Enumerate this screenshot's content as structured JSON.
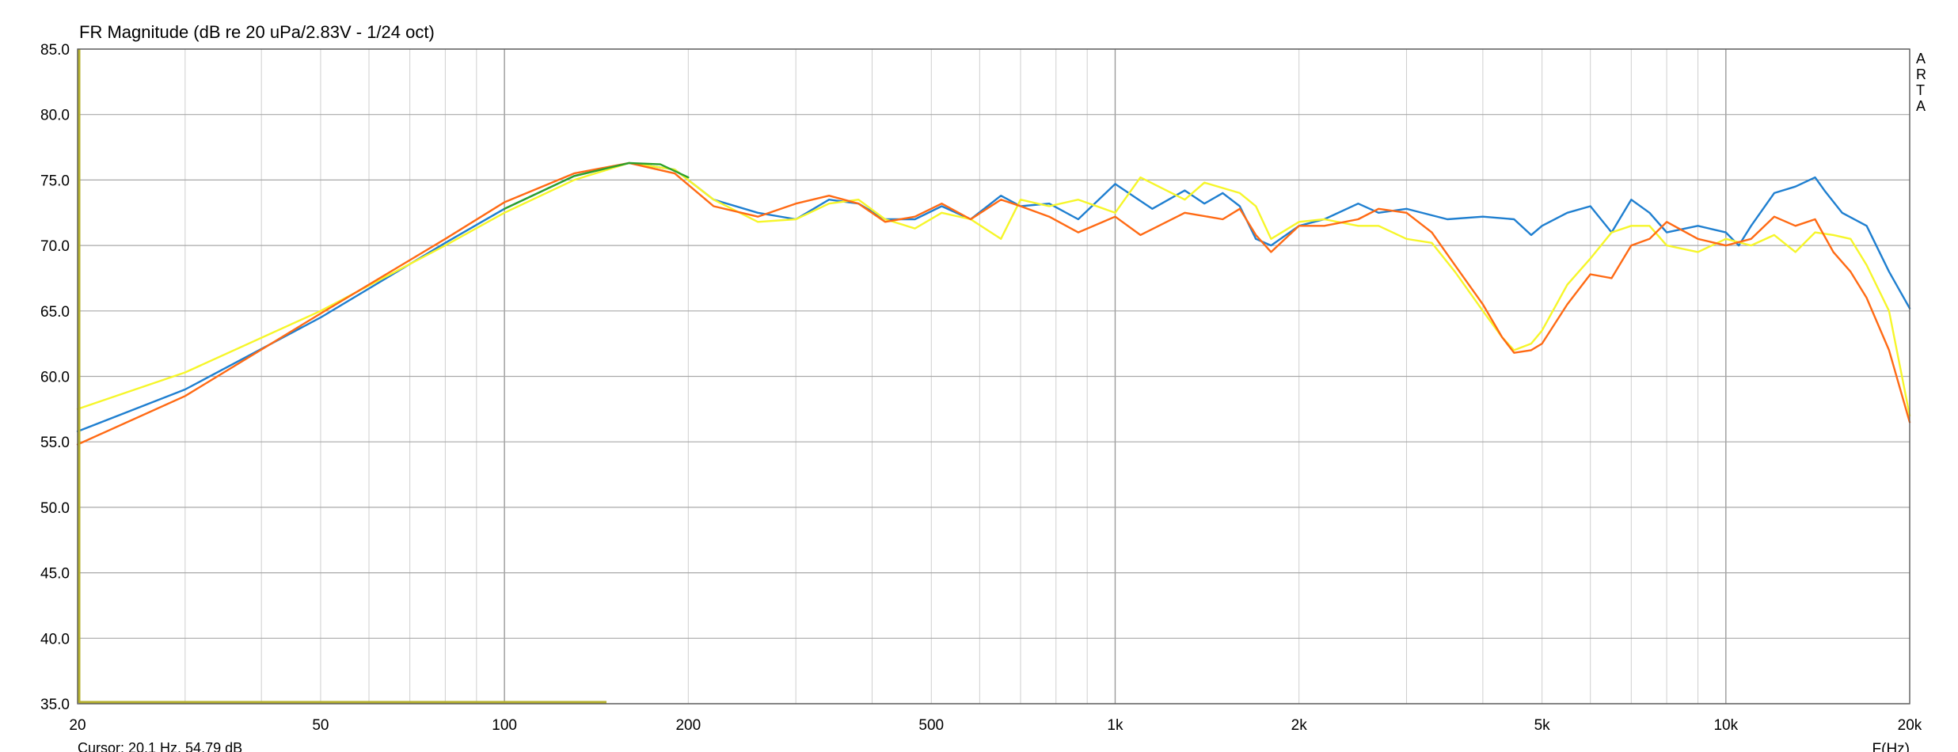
{
  "chart_data": {
    "type": "line",
    "title": "FR Magnitude (dB re 20 uPa/2.83V - 1/24 oct)",
    "xlabel": "F(Hz)",
    "ylabel": "",
    "xscale": "log",
    "xlim": [
      20,
      20000
    ],
    "ylim": [
      35,
      85
    ],
    "grid": true,
    "yticks": [
      "85.0",
      "80.0",
      "75.0",
      "70.0",
      "65.0",
      "60.0",
      "55.0",
      "50.0",
      "45.0",
      "40.0",
      "35.0"
    ],
    "xticks": [
      {
        "value": 20,
        "label": "20"
      },
      {
        "value": 50,
        "label": "50"
      },
      {
        "value": 100,
        "label": "100"
      },
      {
        "value": 200,
        "label": "200"
      },
      {
        "value": 500,
        "label": "500"
      },
      {
        "value": 1000,
        "label": "1k"
      },
      {
        "value": 2000,
        "label": "2k"
      },
      {
        "value": 5000,
        "label": "5k"
      },
      {
        "value": 10000,
        "label": "10k"
      },
      {
        "value": 20000,
        "label": "20k"
      }
    ],
    "brand": "ARTA",
    "cursor": "Cursor: 20.1 Hz, 54.79 dB",
    "series": [
      {
        "color": "#1f7fd0",
        "x": [
          20,
          30,
          50,
          80,
          100,
          130,
          160,
          190,
          220,
          260,
          300,
          340,
          380,
          420,
          470,
          520,
          580,
          650,
          700,
          780,
          870,
          1000,
          1150,
          1300,
          1400,
          1500,
          1600,
          1700,
          1800,
          2000,
          2200,
          2500,
          2700,
          3000,
          3500,
          4000,
          4500,
          4800,
          5000,
          5500,
          6000,
          6500,
          7000,
          7500,
          8000,
          9000,
          10000,
          10500,
          11000,
          12000,
          13000,
          14000,
          14500,
          15500,
          17000,
          18500,
          20000
        ],
        "y": [
          55.8,
          59.0,
          64.5,
          70.2,
          72.8,
          75.3,
          76.3,
          75.8,
          73.5,
          72.5,
          72.0,
          73.5,
          73.2,
          72.0,
          72.0,
          73.0,
          72.0,
          73.8,
          73.0,
          73.2,
          72.0,
          74.7,
          72.8,
          74.2,
          73.2,
          74.0,
          73.0,
          70.5,
          70.0,
          71.5,
          72.0,
          73.2,
          72.5,
          72.8,
          72.0,
          72.2,
          72.0,
          70.8,
          71.5,
          72.5,
          73.0,
          71.0,
          73.5,
          72.5,
          71.0,
          71.5,
          71.0,
          70.0,
          71.5,
          74.0,
          74.5,
          75.2,
          74.2,
          72.5,
          71.5,
          68.0,
          65.2
        ]
      },
      {
        "color": "#f6f62a",
        "x": [
          20,
          30,
          50,
          80,
          100,
          130,
          160,
          190,
          220,
          260,
          300,
          340,
          380,
          420,
          470,
          520,
          580,
          650,
          700,
          780,
          870,
          1000,
          1100,
          1300,
          1400,
          1600,
          1700,
          1800,
          2000,
          2200,
          2500,
          2700,
          3000,
          3300,
          3600,
          4000,
          4300,
          4500,
          4800,
          5000,
          5500,
          6000,
          6500,
          7000,
          7500,
          8000,
          9000,
          10000,
          11000,
          12000,
          13000,
          14000,
          15000,
          16000,
          17000,
          18500,
          20000
        ],
        "y": [
          57.5,
          60.3,
          65.0,
          70.0,
          72.5,
          75.0,
          76.3,
          75.8,
          73.5,
          71.8,
          72.0,
          73.2,
          73.5,
          72.0,
          71.3,
          72.5,
          72.0,
          70.5,
          73.5,
          73.0,
          73.5,
          72.5,
          75.2,
          73.5,
          74.8,
          74.0,
          73.0,
          70.5,
          71.8,
          72.0,
          71.5,
          71.5,
          70.5,
          70.2,
          68.0,
          65.0,
          63.0,
          62.0,
          62.5,
          63.5,
          67.0,
          69.0,
          71.0,
          71.5,
          71.5,
          70.0,
          69.5,
          70.5,
          70.0,
          70.8,
          69.5,
          71.0,
          70.8,
          70.5,
          68.5,
          65.0,
          57.0
        ]
      },
      {
        "color": "#ff6a14",
        "x": [
          20,
          30,
          50,
          80,
          100,
          130,
          160,
          190,
          220,
          260,
          300,
          340,
          380,
          420,
          470,
          520,
          580,
          650,
          700,
          780,
          870,
          1000,
          1100,
          1300,
          1500,
          1600,
          1700,
          1800,
          2000,
          2200,
          2500,
          2700,
          3000,
          3300,
          3600,
          4000,
          4300,
          4500,
          4800,
          5000,
          5500,
          6000,
          6500,
          7000,
          7500,
          8000,
          9000,
          10000,
          11000,
          12000,
          13000,
          14000,
          15000,
          16000,
          17000,
          18500,
          20000
        ],
        "y": [
          54.8,
          58.5,
          64.8,
          70.5,
          73.3,
          75.5,
          76.3,
          75.5,
          73.0,
          72.2,
          73.2,
          73.8,
          73.2,
          71.8,
          72.2,
          73.2,
          72.0,
          73.5,
          73.0,
          72.2,
          71.0,
          72.2,
          70.8,
          72.5,
          72.0,
          72.8,
          70.8,
          69.5,
          71.5,
          71.5,
          72.0,
          72.8,
          72.5,
          71.0,
          68.5,
          65.5,
          63.0,
          61.8,
          62.0,
          62.5,
          65.5,
          67.8,
          67.5,
          70.0,
          70.5,
          71.8,
          70.5,
          70.0,
          70.5,
          72.2,
          71.5,
          72.0,
          69.5,
          68.0,
          66.0,
          62.0,
          56.5
        ]
      },
      {
        "color": "#2ca02c",
        "x": [
          100,
          130,
          160,
          180,
          200
        ],
        "y": [
          72.8,
          75.3,
          76.3,
          76.2,
          75.2
        ]
      }
    ]
  }
}
